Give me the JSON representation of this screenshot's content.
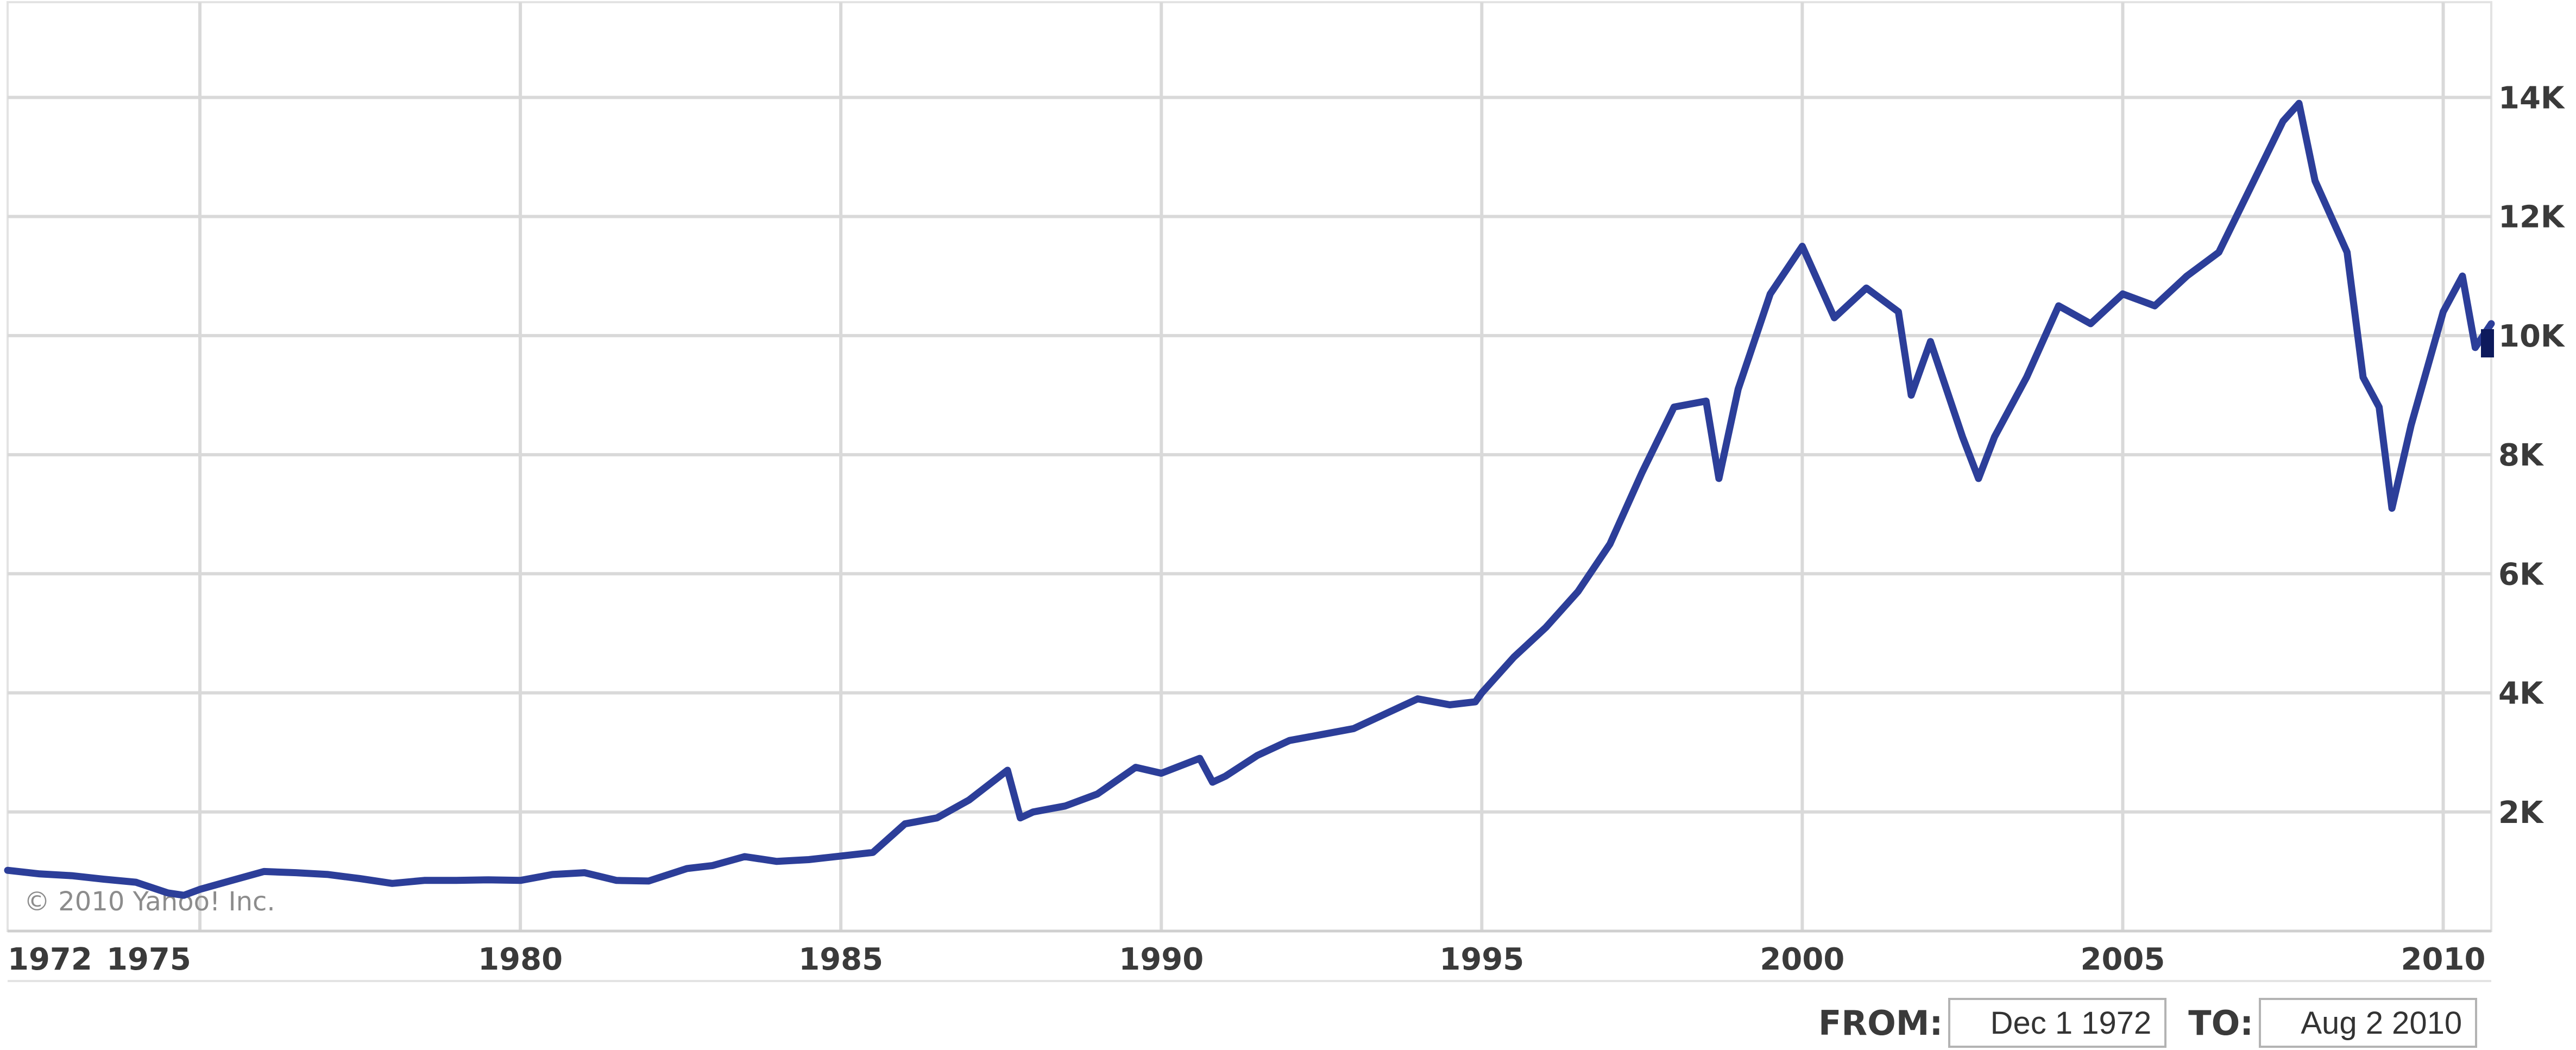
{
  "copyright": "© 2010 Yahoo! Inc.",
  "range": {
    "from_label": "FROM:",
    "from_value": "Dec 1 1972",
    "to_label": "TO:",
    "to_value": "Aug 2 2010"
  },
  "chart_data": {
    "type": "line",
    "title": "",
    "xlabel": "",
    "ylabel": "",
    "xlim": [
      1972.0,
      2010.75
    ],
    "ylim": [
      0,
      15600
    ],
    "grid": true,
    "x_ticks": [
      {
        "value": 1972.0,
        "label": "1972"
      },
      {
        "value": 1975.0,
        "label": "1975"
      },
      {
        "value": 1980.0,
        "label": "1980"
      },
      {
        "value": 1985.0,
        "label": "1985"
      },
      {
        "value": 1990.0,
        "label": "1990"
      },
      {
        "value": 1995.0,
        "label": "1995"
      },
      {
        "value": 2000.0,
        "label": "2000"
      },
      {
        "value": 2005.0,
        "label": "2005"
      },
      {
        "value": 2010.0,
        "label": "2010"
      }
    ],
    "x_gridlines": [
      1975.0,
      1980.0,
      1985.0,
      1990.0,
      1995.0,
      2000.0,
      2005.0,
      2010.0
    ],
    "y_ticks": [
      {
        "value": 2000,
        "label": "2K"
      },
      {
        "value": 4000,
        "label": "4K"
      },
      {
        "value": 6000,
        "label": "6K"
      },
      {
        "value": 8000,
        "label": "8K"
      },
      {
        "value": 10000,
        "label": "10K"
      },
      {
        "value": 12000,
        "label": "12K"
      },
      {
        "value": 14000,
        "label": "14K"
      }
    ],
    "series": [
      {
        "color": "#2c3e99",
        "x": [
          1972.0,
          1972.5,
          1973.0,
          1973.5,
          1974.0,
          1974.5,
          1974.75,
          1975.0,
          1975.5,
          1976.0,
          1976.5,
          1977.0,
          1977.5,
          1978.0,
          1978.5,
          1979.0,
          1979.5,
          1980.0,
          1980.5,
          1981.0,
          1981.5,
          1982.0,
          1982.6,
          1983.0,
          1983.5,
          1984.0,
          1984.5,
          1985.0,
          1985.5,
          1986.0,
          1986.5,
          1987.0,
          1987.6,
          1987.8,
          1988.0,
          1988.5,
          1989.0,
          1989.6,
          1990.0,
          1990.6,
          1990.8,
          1991.0,
          1991.5,
          1992.0,
          1992.5,
          1993.0,
          1993.5,
          1994.0,
          1994.5,
          1994.9,
          1995.0,
          1995.5,
          1996.0,
          1996.5,
          1997.0,
          1997.5,
          1998.0,
          1998.5,
          1998.7,
          1999.0,
          1999.5,
          2000.0,
          2000.5,
          2001.0,
          2001.5,
          2001.7,
          2002.0,
          2002.5,
          2002.75,
          2003.0,
          2003.5,
          2004.0,
          2004.5,
          2005.0,
          2005.5,
          2006.0,
          2006.5,
          2007.0,
          2007.5,
          2007.75,
          2008.0,
          2008.5,
          2008.75,
          2009.0,
          2009.2,
          2009.5,
          2010.0,
          2010.3,
          2010.5,
          2010.75
        ],
        "y": [
          1020,
          960,
          930,
          870,
          820,
          640,
          600,
          700,
          850,
          1000,
          980,
          950,
          880,
          800,
          850,
          850,
          860,
          850,
          950,
          980,
          850,
          840,
          1050,
          1100,
          1250,
          1170,
          1200,
          1260,
          1320,
          1800,
          1900,
          2200,
          2700,
          1900,
          2000,
          2100,
          2300,
          2750,
          2650,
          2900,
          2500,
          2600,
          2950,
          3200,
          3300,
          3400,
          3650,
          3900,
          3800,
          3850,
          4000,
          4600,
          5100,
          5700,
          6500,
          7700,
          8800,
          8900,
          7600,
          9100,
          10700,
          11500,
          10300,
          10800,
          10400,
          9000,
          9900,
          8300,
          7600,
          8300,
          9300,
          10500,
          10200,
          10700,
          10500,
          11000,
          11400,
          12500,
          13600,
          13900,
          12600,
          11400,
          9300,
          8800,
          7100,
          8500,
          10400,
          11000,
          9800,
          10200
        ]
      }
    ]
  }
}
